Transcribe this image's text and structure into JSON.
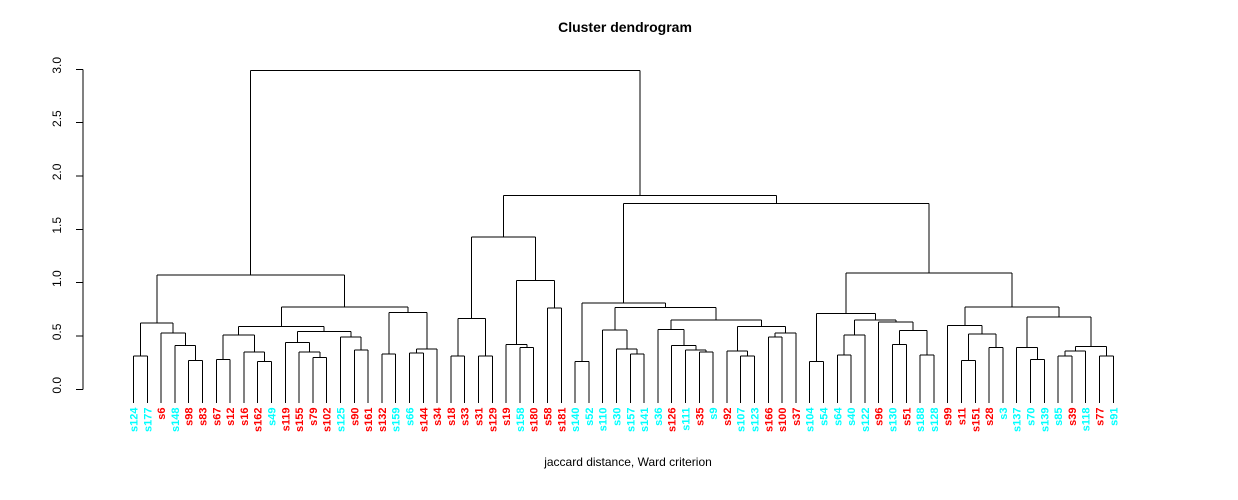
{
  "title": "Cluster dendrogram",
  "subtitle": "jaccard distance, Ward criterion",
  "colors": {
    "red": "#FF0000",
    "cyan": "#00FFFF",
    "line": "#000000"
  },
  "y_axis": {
    "tick_labels": [
      "0.0",
      "0.5",
      "1.0",
      "1.5",
      "2.0",
      "2.5",
      "3.0"
    ],
    "min": 0.0,
    "max": 3.0
  },
  "chart_data": {
    "type": "dendrogram",
    "title": "Cluster dendrogram",
    "xlabel": "jaccard distance, Ward criterion",
    "ylabel": "",
    "ylim": [
      0.0,
      3.0
    ],
    "grid": false,
    "root_height": 2.99,
    "leaves": [
      {
        "label": "s124",
        "color": "cyan"
      },
      {
        "label": "s177",
        "color": "cyan"
      },
      {
        "label": "s6",
        "color": "red"
      },
      {
        "label": "s148",
        "color": "cyan"
      },
      {
        "label": "s98",
        "color": "red"
      },
      {
        "label": "s83",
        "color": "red"
      },
      {
        "label": "s67",
        "color": "red"
      },
      {
        "label": "s12",
        "color": "red"
      },
      {
        "label": "s16",
        "color": "red"
      },
      {
        "label": "s162",
        "color": "red"
      },
      {
        "label": "s49",
        "color": "cyan"
      },
      {
        "label": "s119",
        "color": "red"
      },
      {
        "label": "s155",
        "color": "red"
      },
      {
        "label": "s79",
        "color": "red"
      },
      {
        "label": "s102",
        "color": "red"
      },
      {
        "label": "s125",
        "color": "cyan"
      },
      {
        "label": "s90",
        "color": "red"
      },
      {
        "label": "s161",
        "color": "red"
      },
      {
        "label": "s132",
        "color": "red"
      },
      {
        "label": "s159",
        "color": "cyan"
      },
      {
        "label": "s66",
        "color": "cyan"
      },
      {
        "label": "s144",
        "color": "red"
      },
      {
        "label": "s34",
        "color": "red"
      },
      {
        "label": "s18",
        "color": "red"
      },
      {
        "label": "s33",
        "color": "red"
      },
      {
        "label": "s31",
        "color": "red"
      },
      {
        "label": "s129",
        "color": "red"
      },
      {
        "label": "s19",
        "color": "red"
      },
      {
        "label": "s158",
        "color": "cyan"
      },
      {
        "label": "s180",
        "color": "red"
      },
      {
        "label": "s58",
        "color": "red"
      },
      {
        "label": "s181",
        "color": "red"
      },
      {
        "label": "s140",
        "color": "cyan"
      },
      {
        "label": "s52",
        "color": "cyan"
      },
      {
        "label": "s110",
        "color": "cyan"
      },
      {
        "label": "s30",
        "color": "cyan"
      },
      {
        "label": "s157",
        "color": "cyan"
      },
      {
        "label": "s141",
        "color": "cyan"
      },
      {
        "label": "s36",
        "color": "cyan"
      },
      {
        "label": "s126",
        "color": "red"
      },
      {
        "label": "s111",
        "color": "cyan"
      },
      {
        "label": "s35",
        "color": "red"
      },
      {
        "label": "s9",
        "color": "cyan"
      },
      {
        "label": "s92",
        "color": "red"
      },
      {
        "label": "s107",
        "color": "cyan"
      },
      {
        "label": "s123",
        "color": "cyan"
      },
      {
        "label": "s166",
        "color": "red"
      },
      {
        "label": "s100",
        "color": "red"
      },
      {
        "label": "s37",
        "color": "red"
      },
      {
        "label": "s104",
        "color": "cyan"
      },
      {
        "label": "s54",
        "color": "cyan"
      },
      {
        "label": "s64",
        "color": "cyan"
      },
      {
        "label": "s40",
        "color": "cyan"
      },
      {
        "label": "s122",
        "color": "cyan"
      },
      {
        "label": "s96",
        "color": "red"
      },
      {
        "label": "s130",
        "color": "cyan"
      },
      {
        "label": "s51",
        "color": "red"
      },
      {
        "label": "s188",
        "color": "cyan"
      },
      {
        "label": "s128",
        "color": "cyan"
      },
      {
        "label": "s99",
        "color": "red"
      },
      {
        "label": "s11",
        "color": "red"
      },
      {
        "label": "s151",
        "color": "red"
      },
      {
        "label": "s28",
        "color": "red"
      },
      {
        "label": "s3",
        "color": "cyan"
      },
      {
        "label": "s137",
        "color": "cyan"
      },
      {
        "label": "s70",
        "color": "cyan"
      },
      {
        "label": "s139",
        "color": "cyan"
      },
      {
        "label": "s85",
        "color": "cyan"
      },
      {
        "label": "s39",
        "color": "red"
      },
      {
        "label": "s118",
        "color": "cyan"
      },
      {
        "label": "s77",
        "color": "red"
      },
      {
        "label": "s91",
        "color": "cyan"
      }
    ],
    "tree": [
      [
        [
          [
            "s124",
            "s177",
            0.31
          ],
          [
            "s6",
            [
              "s148",
              [
                "s98",
                "s83",
                0.27
              ],
              0.41
            ],
            0.53
          ],
          0.62
        ],
        [
          [
            [
              [
                "s67",
                "s12",
                0.28
              ],
              [
                "s16",
                [
                  "s162",
                  "s49",
                  0.26
                ],
                0.35
              ],
              0.51
            ],
            [
              [
                "s119",
                [
                  "s155",
                  [
                    "s79",
                    "s102",
                    0.3
                  ],
                  0.35
                ],
                0.44
              ],
              [
                "s125",
                [
                  "s90",
                  "s161",
                  0.37
                ],
                0.49
              ],
              0.54
            ],
            0.59
          ],
          [
            [
              "s132",
              "s159",
              0.33
            ],
            [
              [
                "s66",
                "s144",
                0.34
              ],
              "s34",
              0.38
            ],
            0.72
          ],
          0.77
        ],
        1.07
      ],
      [
        [
          [
            [
              "s18",
              "s33",
              0.31
            ],
            [
              "s31",
              "s129",
              0.31
            ],
            0.665
          ],
          [
            [
              "s19",
              [
                "s158",
                "s180",
                0.39
              ],
              0.42
            ],
            [
              "s58",
              "s181",
              0.76
            ],
            1.02
          ],
          1.43
        ],
        [
          [
            [
              "s140",
              "s52",
              0.26
            ],
            [
              [
                "s110",
                [
                  "s30",
                  [
                    "s157",
                    "s141",
                    0.33
                  ],
                  0.38
                ],
                0.556
              ],
              [
                [
                  "s36",
                  [
                    "s126",
                    [
                      "s111",
                      [
                        "s35",
                        "s9",
                        0.35
                      ],
                      0.37
                    ],
                    0.41
                  ],
                  0.56
                ],
                [
                  [
                    "s92",
                    [
                      "s107",
                      "s123",
                      0.31
                    ],
                    0.36
                  ],
                  [
                    [
                      "s166",
                      "s100",
                      0.49
                    ],
                    "s37",
                    0.53
                  ],
                  0.59
                ],
                0.65
              ],
              0.765
            ],
            0.81
          ],
          [
            [
              [
                "s104",
                "s54",
                0.26
              ],
              [
                [
                  [
                    "s64",
                    "s40",
                    0.32
                  ],
                  "s122",
                  0.51
                ],
                [
                  "s96",
                  [
                    [
                      "s130",
                      "s51",
                      0.42
                    ],
                    [
                      "s188",
                      "s128",
                      0.32
                    ],
                    0.55
                  ],
                  0.63
                ],
                0.65
              ],
              0.71
            ],
            [
              [
                "s99",
                [
                  [
                    "s11",
                    "s151",
                    0.27
                  ],
                  [
                    "s28",
                    "s3",
                    0.39
                  ],
                  0.52
                ],
                0.6
              ],
              [
                [
                  "s137",
                  [
                    "s70",
                    "s139",
                    0.28
                  ],
                  0.39
                ],
                [
                  [
                    [
                      "s85",
                      "s39",
                      0.31
                    ],
                    "s118",
                    0.36
                  ],
                  [
                    "s77",
                    "s91",
                    0.31
                  ],
                  0.4
                ],
                0.68
              ],
              0.77
            ],
            1.09
          ],
          1.74
        ],
        1.815
      ],
      2.99
    ]
  }
}
